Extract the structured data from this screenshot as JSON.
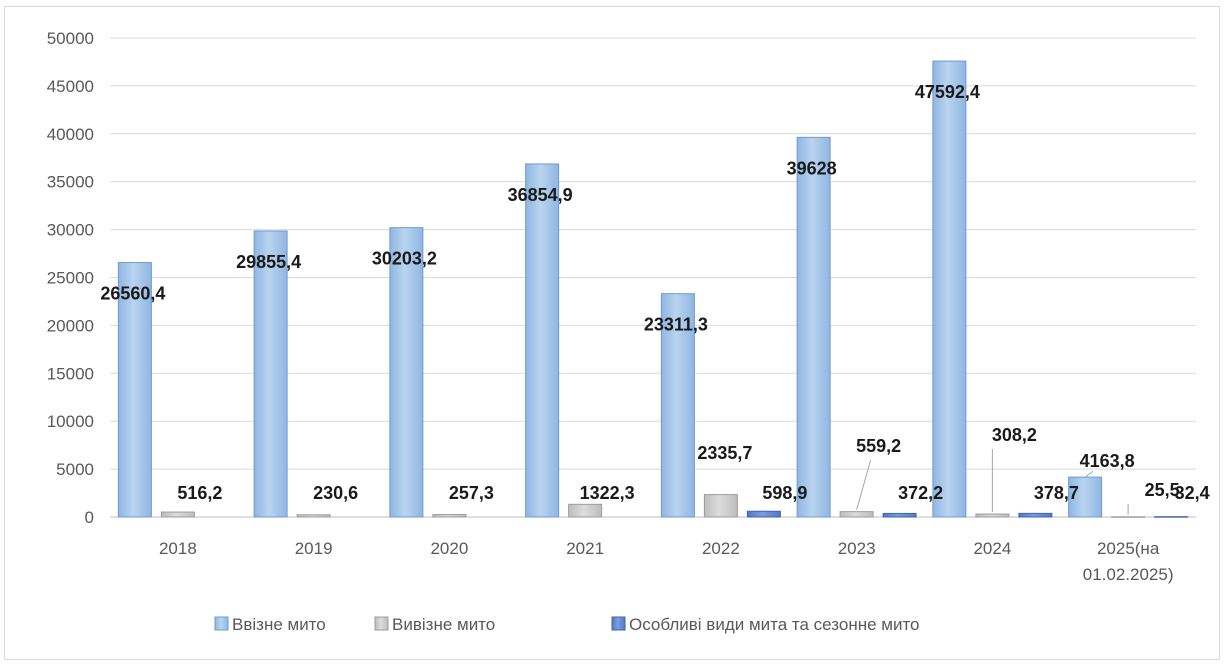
{
  "chart_data": {
    "type": "bar",
    "categories": [
      [
        "2018"
      ],
      [
        "2019"
      ],
      [
        "2020"
      ],
      [
        "2021"
      ],
      [
        "2022"
      ],
      [
        "2023"
      ],
      [
        "2024"
      ],
      [
        "2025(на",
        "01.02.2025)"
      ]
    ],
    "series": [
      {
        "name": "Ввізне мито",
        "color": "#9fc3e7",
        "values": [
          26560.4,
          29855.4,
          30203.2,
          36854.9,
          23311.3,
          39628,
          47592.4,
          4163.8
        ],
        "labels": [
          "26560,4",
          "29855,4",
          "30203,2",
          "36854,9",
          "23311,3",
          "39628",
          "47592,4",
          "4163,8"
        ]
      },
      {
        "name": "Вивізне мито",
        "color": "#c8c8c8",
        "values": [
          516.2,
          230.6,
          257.3,
          1322.3,
          2335.7,
          559.2,
          308.2,
          25.5
        ],
        "labels": [
          "516,2",
          "230,6",
          "257,3",
          "1322,3",
          "2335,7",
          "559,2",
          "308,2",
          "25,5"
        ]
      },
      {
        "name": "Особливі види мита та сезонне мито",
        "color": "#5b84cf",
        "values": [
          null,
          null,
          null,
          null,
          598.9,
          372.2,
          378.7,
          32.4
        ],
        "labels": [
          "",
          "",
          "",
          "",
          "598,9",
          "372,2",
          "378,7",
          "32,4"
        ]
      }
    ],
    "yticks": [
      "0",
      "5000",
      "10000",
      "15000",
      "20000",
      "25000",
      "30000",
      "35000",
      "40000",
      "45000",
      "50000"
    ],
    "ylim": [
      0,
      50000
    ],
    "grid": true,
    "legend_position": "bottom"
  }
}
